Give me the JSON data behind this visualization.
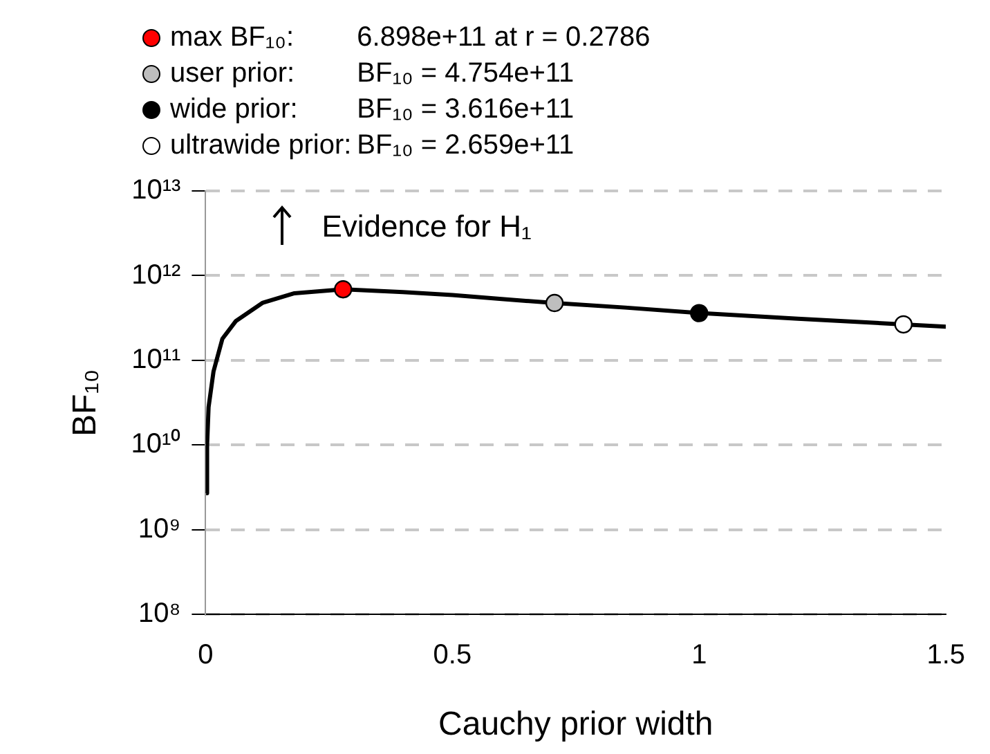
{
  "chart_data": {
    "type": "line",
    "xlabel": "Cauchy prior width",
    "ylabel": "BF₁₀",
    "log": "y",
    "grid": "y",
    "legend": "top",
    "xlim": [
      0,
      1.5
    ],
    "xticks": [
      0,
      0.5,
      1,
      1.5
    ],
    "ylim": [
      100000000.0,
      10000000000000.0
    ],
    "yticks": [
      {
        "value": 100000000.0,
        "label": "10⁸"
      },
      {
        "value": 1000000000.0,
        "label": "10⁹"
      },
      {
        "value": 10000000000.0,
        "label": "10¹⁰"
      },
      {
        "value": 100000000000.0,
        "label": "10¹¹"
      },
      {
        "value": 1000000000000.0,
        "label": "10¹²"
      },
      {
        "value": 10000000000000.0,
        "label": "10¹³"
      }
    ],
    "series": [
      {
        "type": "line",
        "color": "#000000",
        "marker": "none",
        "x": [
          0.001,
          0.003,
          0.006,
          0.016,
          0.034,
          0.061,
          0.116,
          0.18,
          0.2786,
          0.4,
          0.5,
          0.6,
          0.707,
          0.85,
          1,
          1.2,
          1.414,
          1.5
        ],
        "values": [
          2700000000.0,
          10000000000.0,
          28000000000.0,
          74000000000.0,
          180000000000.0,
          290000000000.0,
          480000000000.0,
          620000000000.0,
          689800000000.0,
          640000000000.0,
          590000000000.0,
          530000000000.0,
          475400000000.0,
          420000000000.0,
          361600000000.0,
          310000000000.0,
          265900000000.0,
          250000000000.0
        ]
      },
      {
        "type": "scatter",
        "name": "max BF₁₀:",
        "color": "#ff0000",
        "marker": "circle",
        "x": [
          0.2786
        ],
        "values": [
          689800000000.0
        ]
      },
      {
        "type": "scatter",
        "name": "user prior:",
        "color": "#bebebe",
        "marker": "circle",
        "x": [
          0.707
        ],
        "values": [
          475400000000.0
        ]
      },
      {
        "type": "scatter",
        "name": "wide prior:",
        "color": "#000000",
        "marker": "circle",
        "x": [
          1
        ],
        "values": [
          361600000000.0
        ]
      },
      {
        "type": "scatter",
        "name": "ultrawide prior:",
        "color": "#ffffff",
        "marker": "circle",
        "x": [
          1.414
        ],
        "values": [
          265900000000.0
        ]
      }
    ],
    "annotations": [
      "6.898e+11 at r = 0.2786",
      "BF₁₀ = 4.754e+11",
      "BF₁₀ = 3.616e+11",
      "BF₁₀ = 2.659e+11",
      "Evidence for H₁"
    ]
  }
}
